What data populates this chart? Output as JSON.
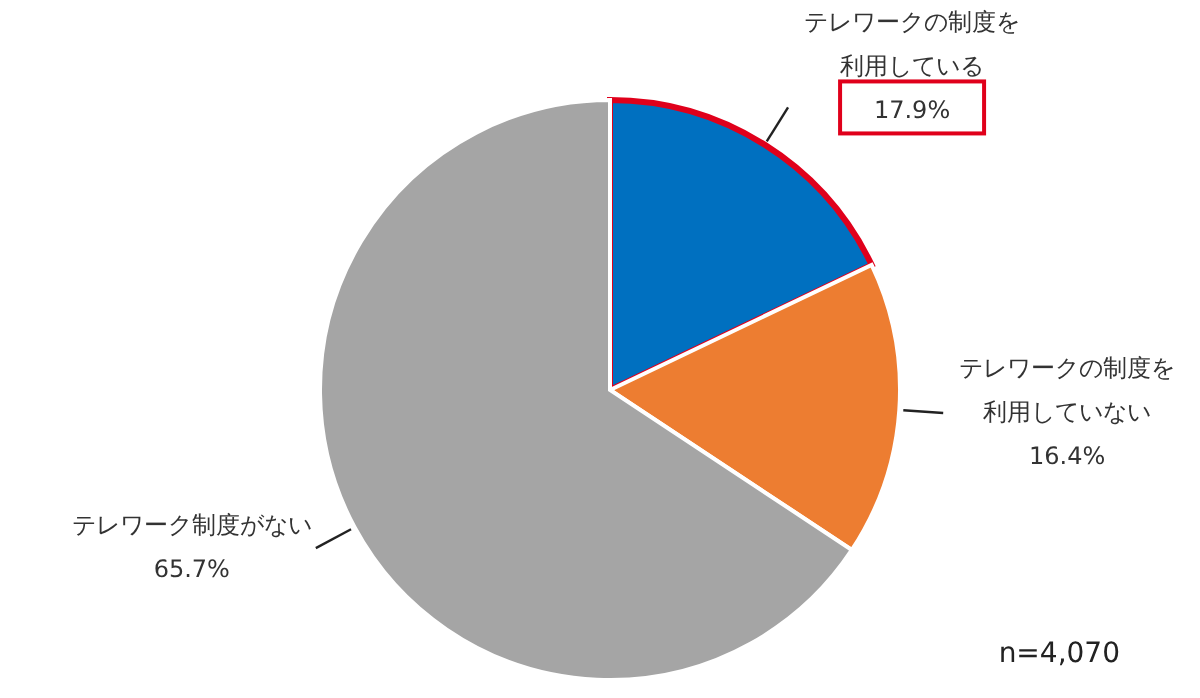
{
  "chart_data": {
    "type": "pie",
    "categories": [
      "テレワークの制度を利用している",
      "テレワークの制度を利用していない",
      "テレワーク制度がない"
    ],
    "values": [
      17.9,
      16.4,
      65.7
    ],
    "colors": [
      "#0070c0",
      "#ed7d31",
      "#a5a5a5"
    ],
    "value_labels": [
      "17.9%",
      "16.4%",
      "65.7%"
    ],
    "annotations": [
      "n=4,070"
    ]
  }
}
